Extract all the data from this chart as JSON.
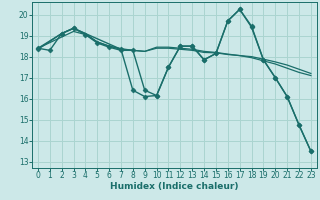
{
  "bg_color": "#cce8e8",
  "line_color": "#1a6e6a",
  "grid_color": "#aad4d0",
  "xlabel": "Humidex (Indice chaleur)",
  "yticks": [
    13,
    14,
    15,
    16,
    17,
    18,
    19,
    20
  ],
  "xticks": [
    0,
    1,
    2,
    3,
    4,
    5,
    6,
    7,
    8,
    9,
    10,
    11,
    12,
    13,
    14,
    15,
    16,
    17,
    18,
    19,
    20,
    21,
    22,
    23
  ],
  "xlim": [
    -0.5,
    23.5
  ],
  "ylim": [
    12.7,
    20.6
  ],
  "lines": [
    {
      "x": [
        0,
        1,
        2,
        3,
        4,
        5,
        6,
        7,
        8,
        9,
        10,
        11,
        12,
        13,
        14,
        15,
        16,
        17,
        18,
        19,
        20,
        21,
        22,
        23
      ],
      "y": [
        18.4,
        18.3,
        19.1,
        19.35,
        19.05,
        18.65,
        18.45,
        18.3,
        18.3,
        16.4,
        16.15,
        17.5,
        18.5,
        18.5,
        17.85,
        18.15,
        19.7,
        20.25,
        19.4,
        17.85,
        17.0,
        16.1,
        14.75,
        13.5
      ],
      "marker": "D",
      "ms": 2.5,
      "lw": 1.0
    },
    {
      "x": [
        0,
        2,
        3,
        4,
        5,
        6,
        7,
        8,
        9,
        10,
        11,
        12,
        13,
        14,
        15,
        16,
        17,
        18,
        19,
        20,
        21,
        22,
        23
      ],
      "y": [
        18.4,
        19.1,
        19.35,
        19.1,
        18.7,
        18.5,
        18.38,
        18.3,
        18.25,
        18.4,
        18.4,
        18.35,
        18.3,
        18.2,
        18.18,
        18.1,
        18.05,
        18.0,
        17.88,
        17.75,
        17.6,
        17.4,
        17.2
      ],
      "marker": null,
      "ms": 0,
      "lw": 0.9
    },
    {
      "x": [
        0,
        3,
        4,
        5,
        6,
        7,
        8,
        9,
        10,
        11,
        12,
        13,
        14,
        15,
        16,
        17,
        18,
        19,
        20,
        21,
        22,
        23
      ],
      "y": [
        18.4,
        19.2,
        19.05,
        18.7,
        18.5,
        18.35,
        18.3,
        18.25,
        18.45,
        18.45,
        18.4,
        18.35,
        18.25,
        18.2,
        18.12,
        18.05,
        17.95,
        17.8,
        17.65,
        17.45,
        17.25,
        17.1
      ],
      "marker": null,
      "ms": 0,
      "lw": 0.9
    },
    {
      "x": [
        0,
        2,
        3,
        7,
        8,
        9,
        10,
        11,
        12,
        13,
        14,
        15,
        16,
        17,
        18,
        19,
        20,
        21,
        22,
        23
      ],
      "y": [
        18.35,
        19.1,
        19.35,
        18.35,
        16.4,
        16.1,
        16.15,
        17.5,
        18.5,
        18.5,
        17.85,
        18.15,
        19.7,
        20.25,
        19.45,
        17.85,
        17.0,
        16.1,
        14.75,
        13.5
      ],
      "marker": "D",
      "ms": 2.5,
      "lw": 1.0
    }
  ]
}
